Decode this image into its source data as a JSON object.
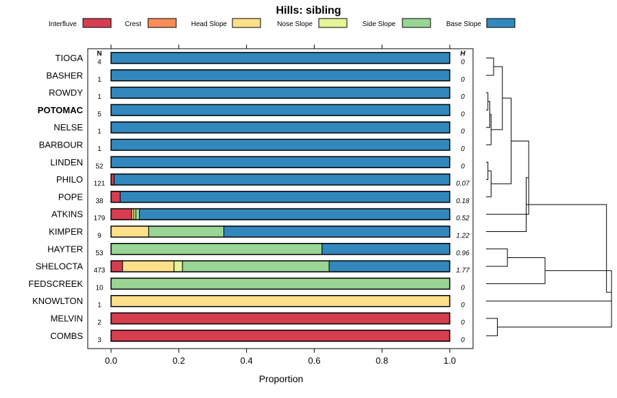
{
  "chart_data": {
    "type": "stacked-bar-horizontal",
    "title": "Hills: sibling",
    "xlabel": "Proportion",
    "xlim": [
      0,
      1
    ],
    "xticks": [
      "0.0",
      "0.2",
      "0.4",
      "0.6",
      "0.8",
      "1.0"
    ],
    "n_header": "N",
    "h_header": "H",
    "legend": [
      {
        "name": "Interfluve",
        "color": "#d53e4f"
      },
      {
        "name": "Crest",
        "color": "#fc8d59"
      },
      {
        "name": "Head Slope",
        "color": "#fee08b"
      },
      {
        "name": "Nose Slope",
        "color": "#e6f598"
      },
      {
        "name": "Side Slope",
        "color": "#99d594"
      },
      {
        "name": "Base Slope",
        "color": "#3288bd"
      }
    ],
    "rows": [
      {
        "label": "TIOGA",
        "bold": false,
        "n": "4",
        "h": "0",
        "values": [
          0,
          0,
          0,
          0,
          0,
          1
        ]
      },
      {
        "label": "BASHER",
        "bold": false,
        "n": "1",
        "h": "0",
        "values": [
          0,
          0,
          0,
          0,
          0,
          1
        ]
      },
      {
        "label": "ROWDY",
        "bold": false,
        "n": "1",
        "h": "0",
        "values": [
          0,
          0,
          0,
          0,
          0,
          1
        ]
      },
      {
        "label": "POTOMAC",
        "bold": true,
        "n": "5",
        "h": "0",
        "values": [
          0,
          0,
          0,
          0,
          0,
          1
        ]
      },
      {
        "label": "NELSE",
        "bold": false,
        "n": "1",
        "h": "0",
        "values": [
          0,
          0,
          0,
          0,
          0,
          1
        ]
      },
      {
        "label": "BARBOUR",
        "bold": false,
        "n": "1",
        "h": "0",
        "values": [
          0,
          0,
          0,
          0,
          0,
          1
        ]
      },
      {
        "label": "LINDEN",
        "bold": false,
        "n": "52",
        "h": "0",
        "values": [
          0,
          0,
          0,
          0,
          0,
          1
        ]
      },
      {
        "label": "PHILO",
        "bold": false,
        "n": "121",
        "h": "0.07",
        "values": [
          0.009,
          0,
          0,
          0,
          0,
          0.991
        ]
      },
      {
        "label": "POPE",
        "bold": false,
        "n": "38",
        "h": "0.18",
        "values": [
          0.027,
          0,
          0,
          0,
          0,
          0.973
        ]
      },
      {
        "label": "ATKINS",
        "bold": false,
        "n": "179",
        "h": "0.52",
        "values": [
          0.061,
          0,
          0.006,
          0.006,
          0.011,
          0.916
        ]
      },
      {
        "label": "KIMPER",
        "bold": false,
        "n": "9",
        "h": "1.22",
        "values": [
          0,
          0,
          0.111,
          0,
          0.222,
          0.667
        ]
      },
      {
        "label": "HAYTER",
        "bold": false,
        "n": "53",
        "h": "0.96",
        "values": [
          0,
          0,
          0,
          0,
          0.623,
          0.377
        ]
      },
      {
        "label": "SHELOCTA",
        "bold": false,
        "n": "473",
        "h": "1.77",
        "values": [
          0.034,
          0,
          0.152,
          0.025,
          0.433,
          0.356
        ]
      },
      {
        "label": "FEDSCREEK",
        "bold": false,
        "n": "10",
        "h": "0",
        "values": [
          0,
          0,
          0,
          0,
          1,
          0
        ]
      },
      {
        "label": "KNOWLTON",
        "bold": false,
        "n": "1",
        "h": "0",
        "values": [
          0,
          0,
          1,
          0,
          0,
          0
        ]
      },
      {
        "label": "MELVIN",
        "bold": false,
        "n": "2",
        "h": "0",
        "values": [
          1,
          0,
          0,
          0,
          0,
          0
        ]
      },
      {
        "label": "COMBS",
        "bold": false,
        "n": "3",
        "h": "0",
        "values": [
          1,
          0,
          0,
          0,
          0,
          0
        ]
      }
    ],
    "dendrogram": {
      "root_height": 1.0,
      "merges": [
        {
          "a": "TIOGA",
          "b": "BASHER",
          "height": 0.06,
          "id": "c1"
        },
        {
          "a": "ROWDY",
          "b": "POTOMAC",
          "height": 0.015,
          "id": "c2"
        },
        {
          "a": "c2",
          "b": "NELSE",
          "height": 0.03,
          "id": "c3"
        },
        {
          "a": "c3",
          "b": "BARBOUR",
          "height": 0.04,
          "id": "c4"
        },
        {
          "a": "c1",
          "b": "c4",
          "height": 0.13,
          "id": "c5"
        },
        {
          "a": "LINDEN",
          "b": "PHILO",
          "height": 0.015,
          "id": "c6"
        },
        {
          "a": "c6",
          "b": "POPE",
          "height": 0.04,
          "id": "c7"
        },
        {
          "a": "c5",
          "b": "c7",
          "height": 0.2,
          "id": "c8"
        },
        {
          "a": "c8",
          "b": "ATKINS",
          "height": 0.34,
          "id": "c9"
        },
        {
          "a": "c9",
          "b": "KIMPER",
          "height": 0.32,
          "id": "c10"
        },
        {
          "a": "HAYTER",
          "b": "SHELOCTA",
          "height": 0.17,
          "id": "c11"
        },
        {
          "a": "c11",
          "b": "FEDSCREEK",
          "height": 0.47,
          "id": "c12"
        },
        {
          "a": "MELVIN",
          "b": "COMBS",
          "height": 0.09,
          "id": "c13"
        },
        {
          "a": "KNOWLTON",
          "b": "c13",
          "height": 1.0,
          "id": "c14"
        },
        {
          "a": "c12",
          "b": "c14",
          "height": 1.0,
          "id": "c15"
        },
        {
          "a": "c10",
          "b": "c15",
          "height": 0.96,
          "id": "c16"
        }
      ]
    }
  }
}
